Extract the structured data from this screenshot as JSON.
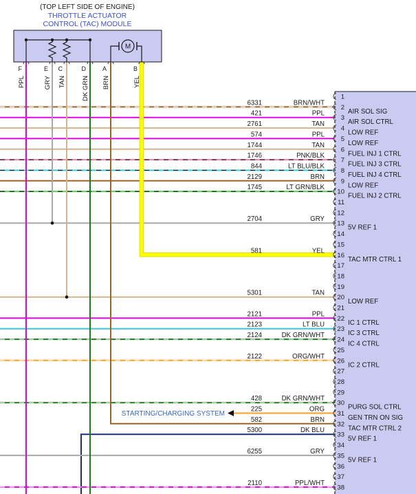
{
  "header": {
    "location_note": "(TOP LEFT SIDE OF ENGINE)",
    "module_name_line1": "THROTTLE ACTUATOR",
    "module_name_line2": "CONTROL (TAC) MODULE"
  },
  "colors": {
    "module_title": "#3a50d9",
    "connector_fill": "#cbcbf2",
    "line_black": "#1a1a1a"
  },
  "tac_module": {
    "motor_label": "M",
    "pins": [
      {
        "pin": "F",
        "wire_color_name": "PPL",
        "color": "#e100e1",
        "connection": "continues-off-bottom-of-diagram"
      },
      {
        "pin": "E",
        "wire_color_name": "GRY",
        "color": "#a8a8a8",
        "connection": "splices-into-circuit-2704"
      },
      {
        "pin": "C",
        "wire_color_name": "TAN",
        "color": "#d2b48c",
        "connection": "splices-into-circuit-5301"
      },
      {
        "pin": "D",
        "wire_color_name": "DK GRN",
        "color": "#1c7a1c",
        "connection": "continues-off-bottom-of-diagram"
      },
      {
        "pin": "A",
        "wire_color_name": "BRN",
        "color": "#9c6528",
        "connection": "feeds-circuit-582"
      },
      {
        "pin": "B",
        "wire_color_name": "YEL",
        "color": "#ffff00",
        "connection": "feeds-circuit-581"
      }
    ]
  },
  "pcm_connector": {
    "pin_count": 38,
    "signals": {
      "2": "AIR SOL SIG",
      "3": "AIR SOL CTRL",
      "4": "LOW REF",
      "5": "LOW REF",
      "6": "FUEL INJ 1 CTRL",
      "7": "FUEL INJ 3 CTRL",
      "8": "FUEL INJ 4 CTRL",
      "9": "LOW REF",
      "10": "FUEL INJ 2 CTRL",
      "13": "5V REF 1",
      "16": "TAC MTR CTRL 1",
      "20": "LOW REF",
      "22": "IC 1 CTRL",
      "23": "IC 3 CTRL",
      "24": "IC 4 CTRL",
      "26": "IC 2 CTRL",
      "30": "PURG SOL CTRL",
      "31": "GEN TRN ON SIG",
      "32": "TAC MTR CTRL 2",
      "33": "5V REF 1",
      "35": "5V REF 1"
    }
  },
  "wires": [
    {
      "circuit": "6331",
      "color_name": "BRN/WHT",
      "pin": 2,
      "color": "#9c6528",
      "stripe": "#ffffff",
      "from": "left-edge"
    },
    {
      "circuit": "421",
      "color_name": "PPL",
      "pin": 3,
      "color": "#e100e1",
      "from": "left-edge"
    },
    {
      "circuit": "2761",
      "color_name": "TAN",
      "pin": 4,
      "color": "#d2b48c",
      "from": "left-edge"
    },
    {
      "circuit": "574",
      "color_name": "PPL",
      "pin": 5,
      "color": "#e100e1",
      "from": "left-edge"
    },
    {
      "circuit": "1744",
      "color_name": "TAN",
      "pin": 6,
      "color": "#d2b48c",
      "from": "left-edge"
    },
    {
      "circuit": "1746",
      "color_name": "PNK/BLK",
      "pin": 7,
      "color": "#f07fb0",
      "stripe": "#000000",
      "from": "left-edge"
    },
    {
      "circuit": "844",
      "color_name": "LT BLU/BLK",
      "pin": 8,
      "color": "#37c8dc",
      "stripe": "#000000",
      "from": "left-edge"
    },
    {
      "circuit": "2129",
      "color_name": "BRN",
      "pin": 9,
      "color": "#9c6528",
      "from": "left-edge"
    },
    {
      "circuit": "1745",
      "color_name": "LT GRN/BLK",
      "pin": 10,
      "color": "#57c957",
      "stripe": "#000000",
      "from": "left-edge"
    },
    {
      "circuit": "2704",
      "color_name": "GRY",
      "pin": 13,
      "color": "#a8a8a8",
      "from": "left-edge"
    },
    {
      "circuit": "581",
      "color_name": "YEL",
      "pin": 16,
      "color": "#ffff00",
      "thick": true,
      "from": "tac-module-pin-B"
    },
    {
      "circuit": "5301",
      "color_name": "TAN",
      "pin": 20,
      "color": "#d2b48c",
      "from": "left-edge"
    },
    {
      "circuit": "2121",
      "color_name": "PPL",
      "pin": 22,
      "color": "#e100e1",
      "from": "left-edge"
    },
    {
      "circuit": "2123",
      "color_name": "LT BLU",
      "pin": 23,
      "color": "#37c8dc",
      "from": "left-edge"
    },
    {
      "circuit": "2124",
      "color_name": "DK GRN/WHT",
      "pin": 24,
      "color": "#1c7a1c",
      "stripe": "#ffffff",
      "from": "left-edge"
    },
    {
      "circuit": "2122",
      "color_name": "ORG/WHT",
      "pin": 26,
      "color": "#ff9d1f",
      "stripe": "#ffffff",
      "from": "left-edge"
    },
    {
      "circuit": "428",
      "color_name": "DK GRN/WHT",
      "pin": 30,
      "color": "#1c7a1c",
      "stripe": "#ffffff",
      "from": "left-edge"
    },
    {
      "circuit": "225",
      "color_name": "ORG",
      "pin": 31,
      "color": "#ff9d1f",
      "from": "starting-charging-system"
    },
    {
      "circuit": "582",
      "color_name": "BRN",
      "pin": 32,
      "color": "#9c6528",
      "from": "tac-module-pin-A"
    },
    {
      "circuit": "5300",
      "color_name": "DK BLU",
      "pin": 33,
      "color": "#1c2f7a",
      "from": "drops-off-bottom"
    },
    {
      "circuit": "6255",
      "color_name": "GRY",
      "pin": 35,
      "color": "#a8a8a8",
      "from": "left-edge"
    },
    {
      "circuit": "2110",
      "color_name": "PPL/WHT",
      "pin": 38,
      "color": "#e100e1",
      "stripe": "#ffffff",
      "from": "left-edge"
    }
  ],
  "off_page_reference": {
    "label": "STARTING/CHARGING SYSTEM",
    "color": "#3566cc",
    "connects_to_circuit": "225"
  }
}
